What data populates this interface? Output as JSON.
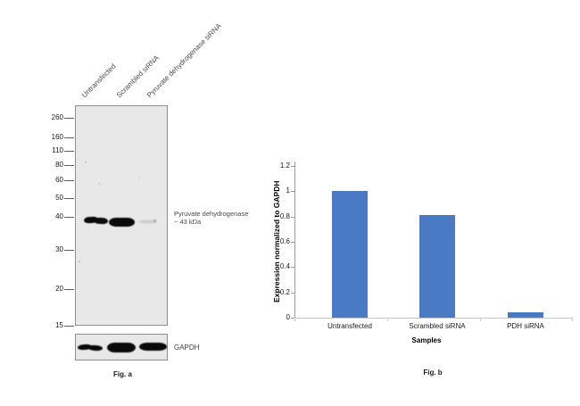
{
  "figure_a": {
    "caption": "Fig. a",
    "lane_labels": [
      "Untransfected",
      "Scrambled siRNA",
      "Pyruvate dehydrogenase siRNA"
    ],
    "mw_markers": [
      "260",
      "160",
      "110",
      "80",
      "60",
      "50",
      "40",
      "30",
      "20",
      "15"
    ],
    "band_annotation": {
      "line1": "Pyruvate dehydrogenase",
      "line2": "~ 43 kDa"
    },
    "loading_control_label": "GAPDH",
    "band_intensities": {
      "pdh": [
        "strong",
        "strong",
        "weak"
      ],
      "gapdh": [
        "strong",
        "strong",
        "strong"
      ]
    }
  },
  "figure_b": {
    "caption": "Fig. b"
  },
  "chart_data": {
    "type": "bar",
    "title": "",
    "categories": [
      "Untransfected",
      "Scrambled siRNA",
      "PDH siRNA"
    ],
    "values": [
      1.0,
      0.81,
      0.04
    ],
    "xlabel": "Samples",
    "ylabel": "Expression normalized to GAPDH",
    "ylim": [
      0,
      1.2
    ],
    "yticks": [
      "0",
      "0.2",
      "0.4",
      "0.6",
      "0.8",
      "1",
      "1.2"
    ],
    "bar_color": "#4a7ac4",
    "grid": false,
    "legend": "none"
  }
}
